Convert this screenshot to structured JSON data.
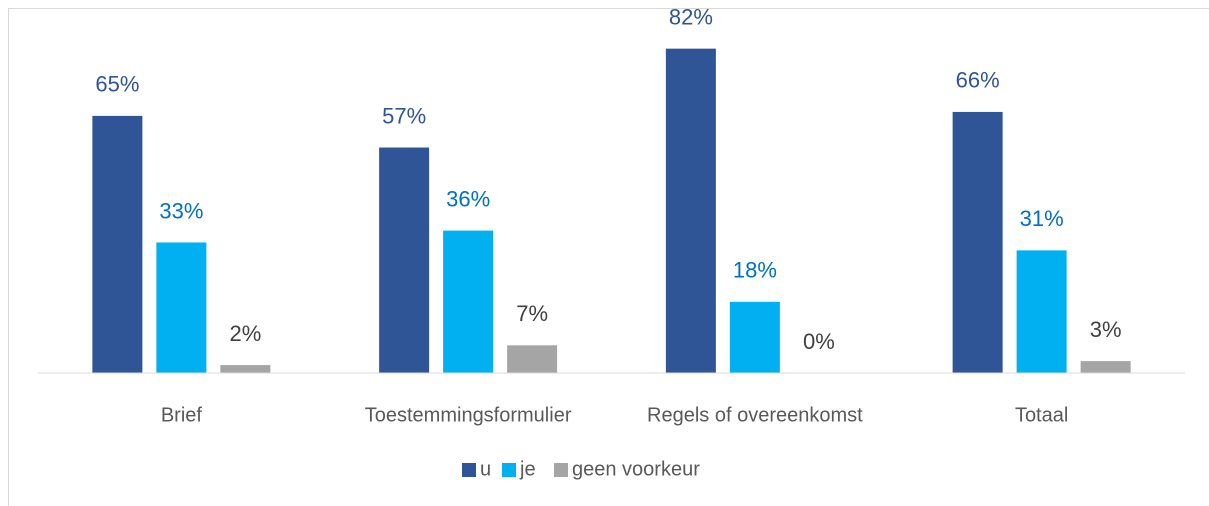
{
  "chart_data": {
    "type": "bar",
    "categories": [
      "Brief",
      "Toestemmingsformulier",
      "Regels of overeenkomst",
      "Totaal"
    ],
    "series": [
      {
        "name": "u",
        "color": "#2f5597",
        "values": [
          65,
          57,
          82,
          66
        ],
        "value_labels": [
          "65%",
          "57%",
          "82%",
          "66%"
        ]
      },
      {
        "name": "je",
        "color": "#00b0f0",
        "values": [
          33,
          36,
          18,
          31
        ],
        "value_labels": [
          "33%",
          "36%",
          "18%",
          "31%"
        ]
      },
      {
        "name": "geen voorkeur",
        "color": "#a5a5a5",
        "values": [
          2,
          7,
          0,
          3
        ],
        "value_labels": [
          "2%",
          "7%",
          "0%",
          "3%"
        ]
      }
    ],
    "ylim": [
      0,
      90
    ],
    "legend": "bottom"
  }
}
